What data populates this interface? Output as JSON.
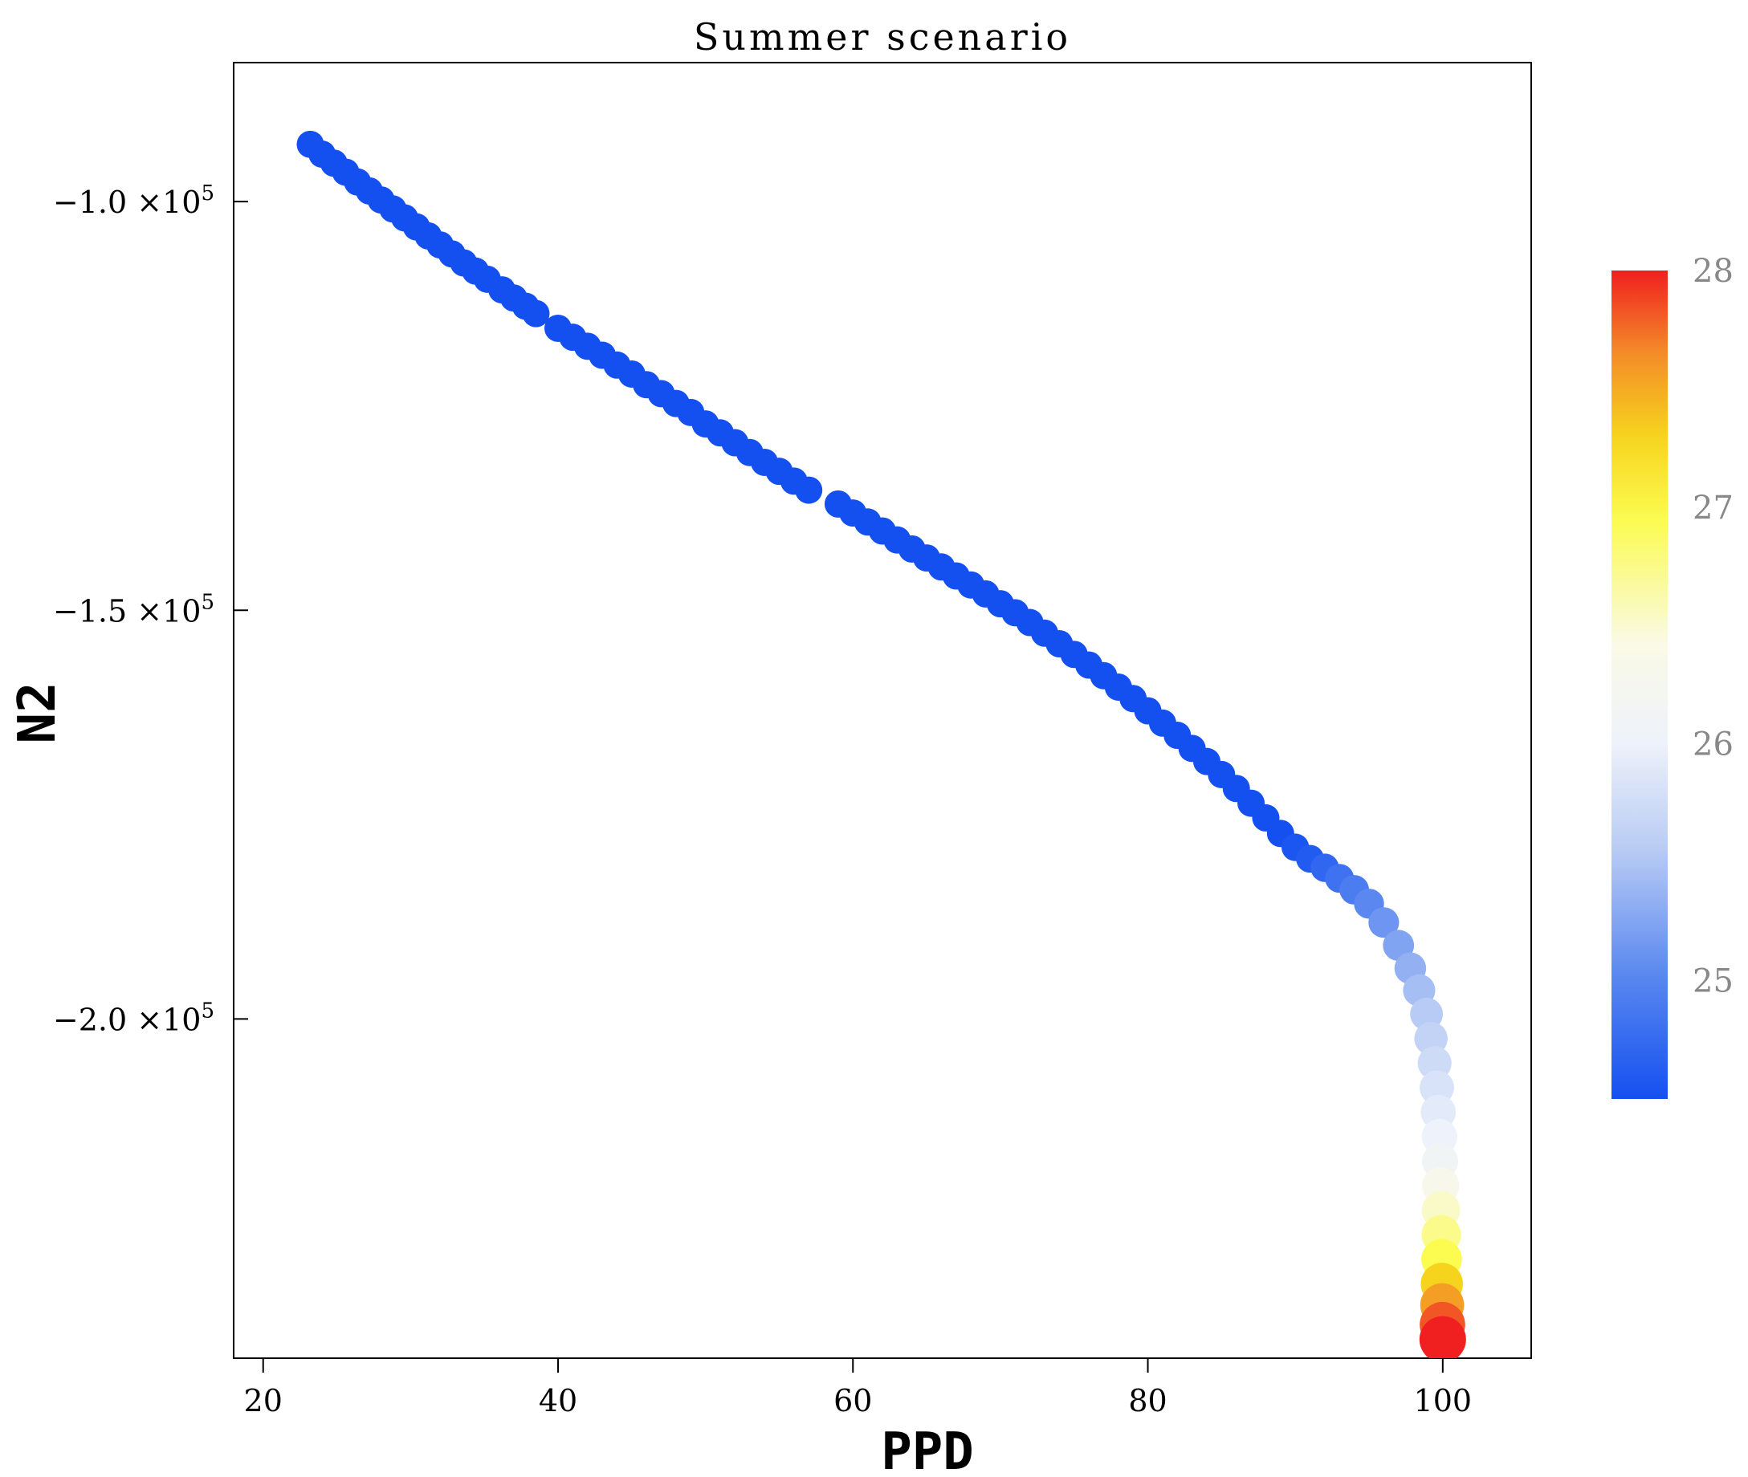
{
  "chart_data": {
    "type": "scatter",
    "title": "Summer scenario",
    "xlabel": "PPD",
    "ylabel": "N2",
    "xlim": [
      18,
      106
    ],
    "ylim": [
      -241500,
      -83000
    ],
    "xticks": [
      20,
      40,
      60,
      80,
      100
    ],
    "xtick_labels": [
      "20",
      "40",
      "60",
      "80",
      "100"
    ],
    "yticks": [
      -100000,
      -150000,
      -200000
    ],
    "ytick_labels": [
      "−1.0 ×10",
      "−1.5 ×10",
      "−2.0 ×10"
    ],
    "ytick_exponent": "5",
    "grid": false,
    "colorbar": {
      "min": 24.5,
      "max": 28,
      "ticks": [
        25,
        26,
        27,
        28
      ],
      "tick_labels": [
        "25",
        "26",
        "27",
        "28"
      ],
      "colors": [
        "#1450f0",
        "#8aa8f2",
        "#e4ecfa",
        "#fafae6",
        "#fbfb50",
        "#f6d41e",
        "#f48c28",
        "#f02020"
      ]
    },
    "points": [
      [
        23.2,
        -93000,
        24.5
      ],
      [
        24.0,
        -94200,
        24.5
      ],
      [
        24.8,
        -95300,
        24.5
      ],
      [
        25.6,
        -96400,
        24.5
      ],
      [
        26.4,
        -97600,
        24.5
      ],
      [
        27.2,
        -98700,
        24.5
      ],
      [
        28.0,
        -99800,
        24.5
      ],
      [
        28.8,
        -100900,
        24.5
      ],
      [
        29.6,
        -102000,
        24.5
      ],
      [
        30.4,
        -103100,
        24.5
      ],
      [
        31.2,
        -104200,
        24.5
      ],
      [
        32.0,
        -105300,
        24.5
      ],
      [
        32.8,
        -106400,
        24.5
      ],
      [
        33.6,
        -107500,
        24.5
      ],
      [
        34.4,
        -108500,
        24.5
      ],
      [
        35.2,
        -109500,
        24.5
      ],
      [
        36.2,
        -110800,
        24.5
      ],
      [
        37.0,
        -111800,
        24.5
      ],
      [
        37.8,
        -112800,
        24.5
      ],
      [
        38.5,
        -113700,
        24.5
      ],
      [
        40.0,
        -115500,
        24.5
      ],
      [
        41.0,
        -116600,
        24.5
      ],
      [
        42.0,
        -117700,
        24.5
      ],
      [
        43.0,
        -118800,
        24.5
      ],
      [
        44.0,
        -120000,
        24.5
      ],
      [
        45.0,
        -121100,
        24.5
      ],
      [
        46.0,
        -122400,
        24.5
      ],
      [
        47.0,
        -123500,
        24.5
      ],
      [
        48.0,
        -124700,
        24.5
      ],
      [
        49.0,
        -125800,
        24.5
      ],
      [
        50.0,
        -127200,
        24.5
      ],
      [
        51.0,
        -128300,
        24.5
      ],
      [
        52.0,
        -129500,
        24.5
      ],
      [
        53.0,
        -130700,
        24.5
      ],
      [
        54.0,
        -131900,
        24.5
      ],
      [
        55.0,
        -133000,
        24.5
      ],
      [
        56.0,
        -134200,
        24.5
      ],
      [
        57.0,
        -135300,
        24.5
      ],
      [
        59.0,
        -137000,
        24.5
      ],
      [
        60.0,
        -138100,
        24.5
      ],
      [
        61.0,
        -139200,
        24.5
      ],
      [
        62.0,
        -140300,
        24.5
      ],
      [
        63.0,
        -141400,
        24.5
      ],
      [
        64.0,
        -142500,
        24.5
      ],
      [
        65.0,
        -143600,
        24.5
      ],
      [
        66.0,
        -144700,
        24.5
      ],
      [
        67.0,
        -145800,
        24.5
      ],
      [
        68.0,
        -146900,
        24.5
      ],
      [
        69.0,
        -148000,
        24.5
      ],
      [
        70.0,
        -149200,
        24.5
      ],
      [
        71.0,
        -150300,
        24.5
      ],
      [
        72.0,
        -151500,
        24.5
      ],
      [
        73.0,
        -152800,
        24.5
      ],
      [
        74.0,
        -154100,
        24.5
      ],
      [
        75.0,
        -155400,
        24.5
      ],
      [
        76.0,
        -156700,
        24.5
      ],
      [
        77.0,
        -158000,
        24.5
      ],
      [
        78.0,
        -159400,
        24.5
      ],
      [
        79.0,
        -160800,
        24.5
      ],
      [
        80.0,
        -162300,
        24.5
      ],
      [
        81.0,
        -163800,
        24.5
      ],
      [
        82.0,
        -165300,
        24.5
      ],
      [
        83.0,
        -166900,
        24.5
      ],
      [
        84.0,
        -168500,
        24.5
      ],
      [
        85.0,
        -170100,
        24.5
      ],
      [
        86.0,
        -171800,
        24.5
      ],
      [
        87.0,
        -173600,
        24.5
      ],
      [
        88.0,
        -175400,
        24.5
      ],
      [
        89.0,
        -177300,
        24.5
      ],
      [
        90.0,
        -179000,
        24.55
      ],
      [
        91.0,
        -180400,
        24.6
      ],
      [
        92.0,
        -181500,
        24.7
      ],
      [
        93.0,
        -182800,
        24.8
      ],
      [
        94.0,
        -184200,
        24.9
      ],
      [
        95.0,
        -185900,
        25.0
      ],
      [
        96.0,
        -188200,
        25.1
      ],
      [
        97.0,
        -191000,
        25.2
      ],
      [
        97.8,
        -193800,
        25.3
      ],
      [
        98.4,
        -196500,
        25.4
      ],
      [
        98.9,
        -199400,
        25.5
      ],
      [
        99.2,
        -202400,
        25.6
      ],
      [
        99.45,
        -205400,
        25.7
      ],
      [
        99.6,
        -208400,
        25.8
      ],
      [
        99.7,
        -211400,
        25.9
      ],
      [
        99.78,
        -214400,
        26.0
      ],
      [
        99.82,
        -217400,
        26.1
      ],
      [
        99.86,
        -220400,
        26.3
      ],
      [
        99.88,
        -223400,
        26.5
      ],
      [
        99.9,
        -226400,
        26.7
      ],
      [
        99.92,
        -229400,
        26.9
      ],
      [
        99.94,
        -232400,
        27.2
      ],
      [
        99.96,
        -235000,
        27.5
      ],
      [
        99.98,
        -237400,
        27.8
      ],
      [
        100.0,
        -239200,
        28.0
      ]
    ]
  }
}
